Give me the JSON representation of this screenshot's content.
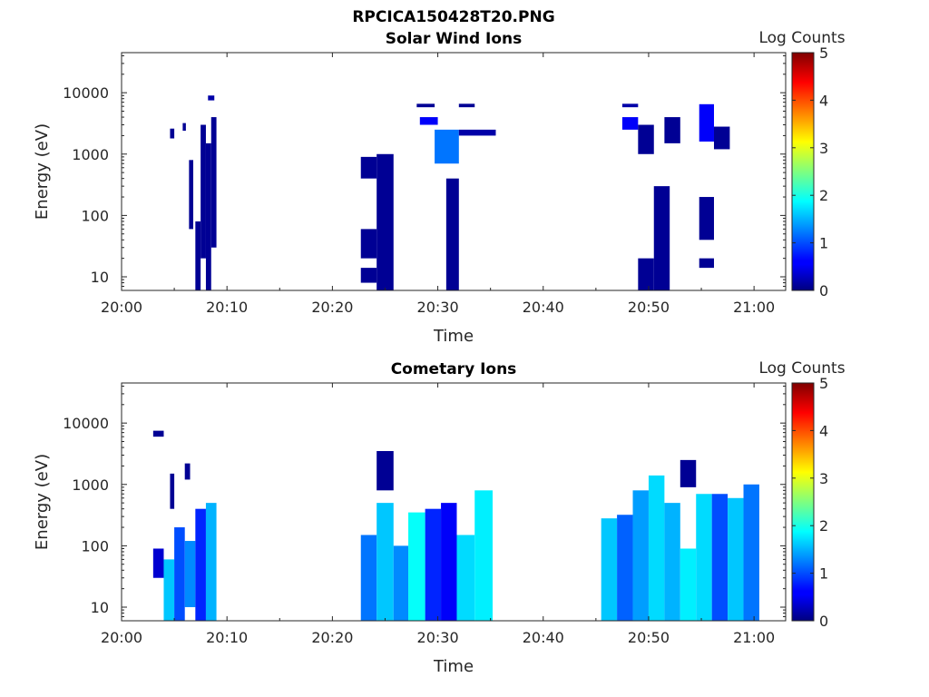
{
  "figure_title": "RPCICA150428T20.PNG",
  "colorbar": {
    "label": "Log Counts",
    "ticks": [
      "0",
      "1",
      "2",
      "3",
      "4",
      "5"
    ],
    "range": [
      0,
      5
    ],
    "colormap": "jet"
  },
  "chart_data": [
    {
      "type": "heatmap",
      "title": "Solar Wind Ions",
      "xlabel": "Time",
      "ylabel": "Energy (eV)",
      "x_ticks": [
        "20:00",
        "20:10",
        "20:20",
        "20:30",
        "20:40",
        "20:50",
        "21:00"
      ],
      "y_ticks": [
        "10",
        "100",
        "1000",
        "10000"
      ],
      "xlim_minutes_after_20_00": [
        0,
        63
      ],
      "ylim_eV": [
        6,
        45000
      ],
      "y_scale": "log",
      "cells": [
        {
          "t": [
            7.0,
            7.5
          ],
          "e": [
            6,
            80
          ],
          "v": 0.1
        },
        {
          "t": [
            7.5,
            8.0
          ],
          "e": [
            20,
            3000
          ],
          "v": 0.1
        },
        {
          "t": [
            8.0,
            8.5
          ],
          "e": [
            6,
            1500
          ],
          "v": 0.1
        },
        {
          "t": [
            8.5,
            9.0
          ],
          "e": [
            30,
            4000
          ],
          "v": 0.1
        },
        {
          "t": [
            6.4,
            6.8
          ],
          "e": [
            60,
            800
          ],
          "v": 0.1
        },
        {
          "t": [
            4.6,
            5.0
          ],
          "e": [
            1800,
            2600
          ],
          "v": 0.1
        },
        {
          "t": [
            5.8,
            6.1
          ],
          "e": [
            2400,
            3200
          ],
          "v": 0.1
        },
        {
          "t": [
            8.2,
            8.8
          ],
          "e": [
            7500,
            9000
          ],
          "v": 0.2
        },
        {
          "t": [
            22.7,
            24.2
          ],
          "e": [
            400,
            900
          ],
          "v": 0.1
        },
        {
          "t": [
            22.7,
            24.2
          ],
          "e": [
            8,
            14
          ],
          "v": 0.1
        },
        {
          "t": [
            22.7,
            24.2
          ],
          "e": [
            20,
            60
          ],
          "v": 0.1
        },
        {
          "t": [
            24.2,
            25.8
          ],
          "e": [
            6,
            1000
          ],
          "v": 0.1
        },
        {
          "t": [
            28.3,
            30.0
          ],
          "e": [
            3000,
            4000
          ],
          "v": 0.6
        },
        {
          "t": [
            28.0,
            29.7
          ],
          "e": [
            5800,
            6600
          ],
          "v": 0.1
        },
        {
          "t": [
            29.7,
            32.0
          ],
          "e": [
            700,
            2500
          ],
          "v": 1.2
        },
        {
          "t": [
            30.8,
            32.0
          ],
          "e": [
            6,
            400
          ],
          "v": 0.1
        },
        {
          "t": [
            32.0,
            35.5
          ],
          "e": [
            2000,
            2500
          ],
          "v": 0.2
        },
        {
          "t": [
            32.0,
            33.5
          ],
          "e": [
            5800,
            6600
          ],
          "v": 0.1
        },
        {
          "t": [
            47.5,
            49.0
          ],
          "e": [
            2500,
            4000
          ],
          "v": 0.6
        },
        {
          "t": [
            47.5,
            49.0
          ],
          "e": [
            5800,
            6600
          ],
          "v": 0.2
        },
        {
          "t": [
            49.0,
            50.5
          ],
          "e": [
            6,
            20
          ],
          "v": 0.1
        },
        {
          "t": [
            49.0,
            50.5
          ],
          "e": [
            1000,
            3000
          ],
          "v": 0.1
        },
        {
          "t": [
            50.5,
            52.0
          ],
          "e": [
            6,
            300
          ],
          "v": 0.1
        },
        {
          "t": [
            51.5,
            53.0
          ],
          "e": [
            1500,
            4000
          ],
          "v": 0.1
        },
        {
          "t": [
            54.8,
            56.2
          ],
          "e": [
            1600,
            6500
          ],
          "v": 0.6
        },
        {
          "t": [
            54.8,
            56.2
          ],
          "e": [
            40,
            200
          ],
          "v": 0.1
        },
        {
          "t": [
            54.8,
            56.2
          ],
          "e": [
            14,
            20
          ],
          "v": 0.1
        },
        {
          "t": [
            56.2,
            57.7
          ],
          "e": [
            1200,
            2800
          ],
          "v": 0.1
        }
      ]
    },
    {
      "type": "heatmap",
      "title": "Cometary Ions",
      "xlabel": "Time",
      "ylabel": "Energy (eV)",
      "x_ticks": [
        "20:00",
        "20:10",
        "20:20",
        "20:30",
        "20:40",
        "20:50",
        "21:00"
      ],
      "y_ticks": [
        "10",
        "100",
        "1000",
        "10000"
      ],
      "xlim_minutes_after_20_00": [
        0,
        63
      ],
      "ylim_eV": [
        6,
        45000
      ],
      "y_scale": "log",
      "cells": [
        {
          "t": [
            3.0,
            4.0
          ],
          "e": [
            30,
            90
          ],
          "v": 0.4
        },
        {
          "t": [
            3.0,
            4.0
          ],
          "e": [
            6000,
            7500
          ],
          "v": 0.1
        },
        {
          "t": [
            4.0,
            5.0
          ],
          "e": [
            6,
            60
          ],
          "v": 1.6
        },
        {
          "t": [
            5.0,
            6.0
          ],
          "e": [
            6,
            200
          ],
          "v": 1.0
        },
        {
          "t": [
            6.0,
            7.0
          ],
          "e": [
            10,
            120
          ],
          "v": 1.3
        },
        {
          "t": [
            7.0,
            8.0
          ],
          "e": [
            6,
            400
          ],
          "v": 0.8
        },
        {
          "t": [
            8.0,
            9.0
          ],
          "e": [
            6,
            500
          ],
          "v": 1.5
        },
        {
          "t": [
            4.6,
            5.0
          ],
          "e": [
            400,
            1500
          ],
          "v": 0.1
        },
        {
          "t": [
            6.0,
            6.5
          ],
          "e": [
            1200,
            2200
          ],
          "v": 0.1
        },
        {
          "t": [
            22.7,
            24.2
          ],
          "e": [
            6,
            150
          ],
          "v": 1.2
        },
        {
          "t": [
            24.2,
            25.8
          ],
          "e": [
            6,
            500
          ],
          "v": 1.6
        },
        {
          "t": [
            25.8,
            27.2
          ],
          "e": [
            6,
            100
          ],
          "v": 1.3
        },
        {
          "t": [
            27.2,
            28.8
          ],
          "e": [
            6,
            350
          ],
          "v": 1.9
        },
        {
          "t": [
            28.8,
            30.3
          ],
          "e": [
            6,
            400
          ],
          "v": 0.8
        },
        {
          "t": [
            30.3,
            31.8
          ],
          "e": [
            6,
            500
          ],
          "v": 0.6
        },
        {
          "t": [
            31.8,
            33.5
          ],
          "e": [
            6,
            150
          ],
          "v": 1.7
        },
        {
          "t": [
            33.5,
            35.2
          ],
          "e": [
            6,
            800
          ],
          "v": 1.8
        },
        {
          "t": [
            24.2,
            25.8
          ],
          "e": [
            800,
            3500
          ],
          "v": 0.1
        },
        {
          "t": [
            45.5,
            47.0
          ],
          "e": [
            6,
            280
          ],
          "v": 1.6
        },
        {
          "t": [
            47.0,
            48.5
          ],
          "e": [
            6,
            320
          ],
          "v": 1.1
        },
        {
          "t": [
            48.5,
            50.0
          ],
          "e": [
            6,
            800
          ],
          "v": 1.4
        },
        {
          "t": [
            50.0,
            51.5
          ],
          "e": [
            6,
            1400
          ],
          "v": 1.7
        },
        {
          "t": [
            51.5,
            53.0
          ],
          "e": [
            6,
            500
          ],
          "v": 1.5
        },
        {
          "t": [
            53.0,
            54.5
          ],
          "e": [
            6,
            90
          ],
          "v": 1.8
        },
        {
          "t": [
            54.5,
            56.0
          ],
          "e": [
            6,
            700
          ],
          "v": 1.7
        },
        {
          "t": [
            56.0,
            57.5
          ],
          "e": [
            6,
            700
          ],
          "v": 1.0
        },
        {
          "t": [
            57.5,
            59.0
          ],
          "e": [
            6,
            600
          ],
          "v": 1.6
        },
        {
          "t": [
            59.0,
            60.5
          ],
          "e": [
            6,
            1000
          ],
          "v": 1.2
        },
        {
          "t": [
            53.0,
            54.5
          ],
          "e": [
            900,
            2500
          ],
          "v": 0.1
        }
      ]
    }
  ]
}
